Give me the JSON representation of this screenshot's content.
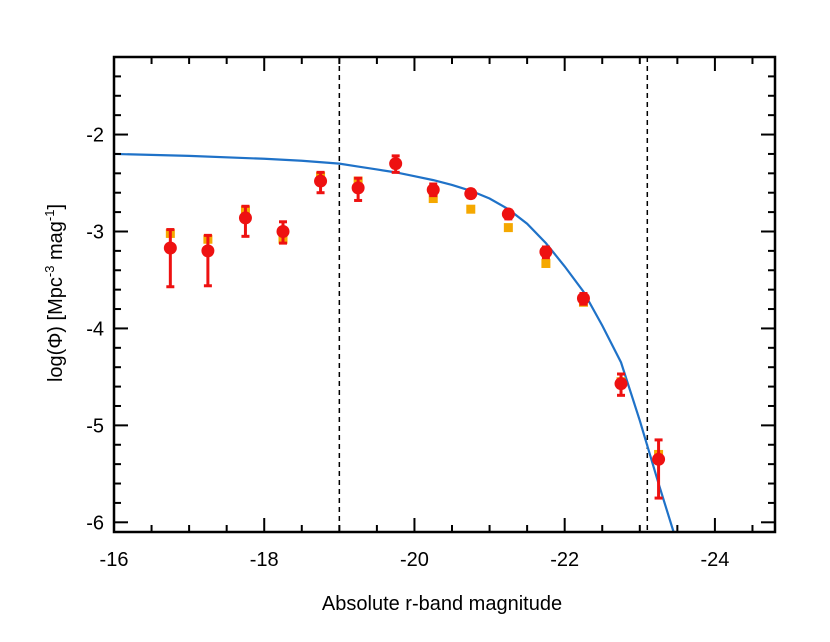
{
  "chart_data": {
    "type": "scatter",
    "xlabel": "Absolute r-band magnitude",
    "ylabel": {
      "prefix": "log(Φ) [Mpc",
      "exp1": "-3",
      "middle": " mag",
      "exp2": "-1",
      "suffix": "]"
    },
    "xlim": [
      -16,
      -24.8
    ],
    "ylim": [
      -6.1,
      -1.2
    ],
    "x_ticks": [
      -16,
      -18,
      -20,
      -22,
      -24
    ],
    "x_tick_labels": [
      "-16",
      "-18",
      "-20",
      "-22",
      "-24"
    ],
    "y_ticks": [
      -6,
      -5,
      -4,
      -3,
      -2
    ],
    "y_tick_labels": [
      "-6",
      "-5",
      "-4",
      "-3",
      "-2"
    ],
    "vertical_dashed_lines": [
      -19.0,
      -23.1
    ],
    "colors": {
      "points": "#ee1111",
      "squares": "#f5a800",
      "curve": "#1f72c8",
      "axes": "#000000"
    },
    "curve": {
      "x": [
        -16.0,
        -17.0,
        -18.0,
        -18.5,
        -19.0,
        -19.25,
        -19.5,
        -19.75,
        -20.0,
        -20.25,
        -20.5,
        -20.75,
        -21.0,
        -21.25,
        -21.5,
        -21.75,
        -22.0,
        -22.25,
        -22.5,
        -22.75,
        -23.0,
        -23.25,
        -23.45
      ],
      "y": [
        -2.2,
        -2.22,
        -2.25,
        -2.27,
        -2.3,
        -2.33,
        -2.36,
        -2.39,
        -2.43,
        -2.47,
        -2.52,
        -2.58,
        -2.66,
        -2.77,
        -2.92,
        -3.12,
        -3.36,
        -3.62,
        -3.97,
        -4.35,
        -4.95,
        -5.6,
        -6.1
      ]
    },
    "series": [
      {
        "x": [
          -16.75,
          -17.25,
          -17.75,
          -18.25,
          -18.75,
          -19.25,
          -19.75,
          -20.25,
          -20.75,
          -21.25,
          -21.75,
          -22.25,
          -22.75,
          -23.25
        ],
        "y": [
          -3.17,
          -3.2,
          -2.86,
          -3.0,
          -2.48,
          -2.55,
          -2.3,
          -2.57,
          -2.61,
          -2.82,
          -3.21,
          -3.69,
          -4.57,
          -5.35
        ],
        "err_low": [
          0.4,
          0.36,
          0.19,
          0.12,
          0.12,
          0.13,
          0.09,
          0.06,
          0.04,
          0.05,
          0.06,
          0.06,
          0.12,
          0.4
        ],
        "err_high": [
          0.19,
          0.16,
          0.12,
          0.1,
          0.09,
          0.1,
          0.08,
          0.06,
          0.04,
          0.04,
          0.05,
          0.05,
          0.1,
          0.2
        ]
      },
      {
        "x": [
          -16.75,
          -17.25,
          -17.75,
          -18.25,
          -18.75,
          -19.25,
          -19.75,
          -20.25,
          -20.75,
          -21.25,
          -21.75,
          -22.25,
          -22.75,
          -23.25
        ],
        "y": [
          -3.02,
          -3.08,
          -2.78,
          -3.08,
          -2.43,
          -2.48,
          -2.3,
          -2.66,
          -2.77,
          -2.96,
          -3.33,
          -3.73,
          -4.55,
          -5.3
        ]
      }
    ]
  }
}
